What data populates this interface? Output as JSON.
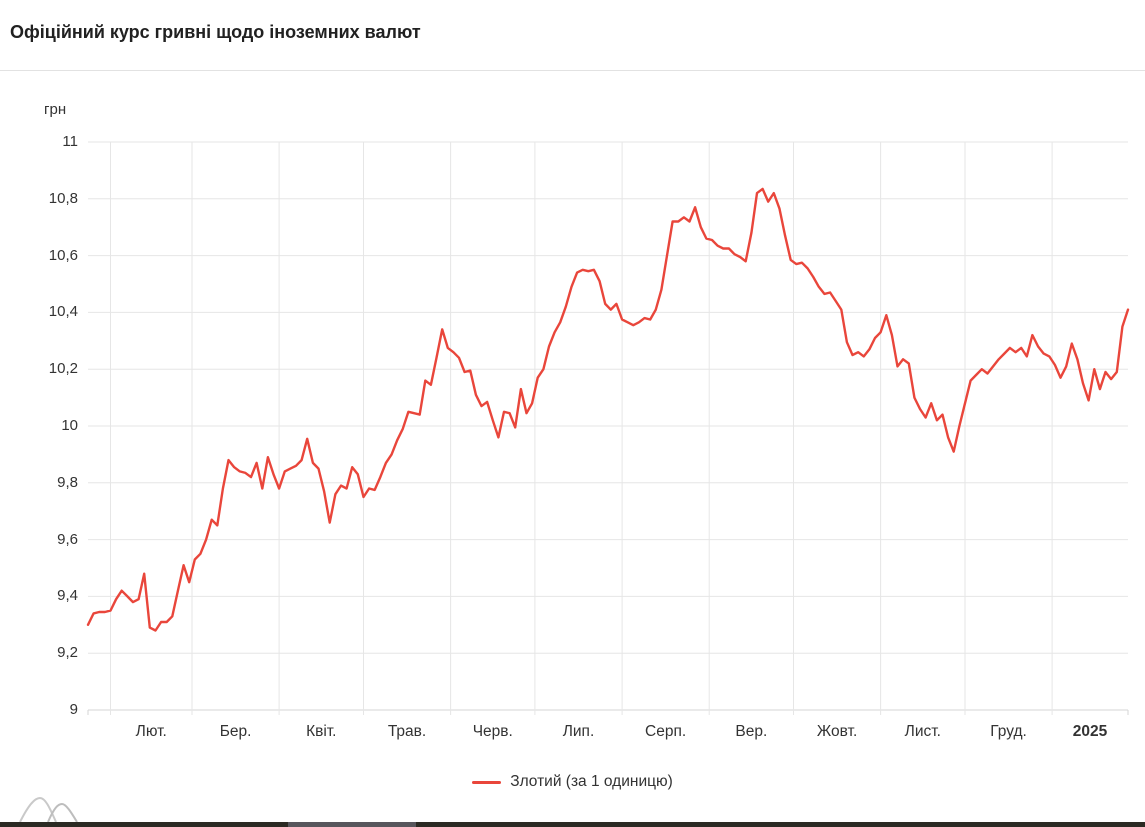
{
  "header": {
    "title": "Офіційний курс гривні щодо іноземних валют"
  },
  "chart_data": {
    "type": "line",
    "title": "Офіційний курс гривні щодо іноземних валют",
    "unit_label": "грн",
    "ylim": [
      9,
      11
    ],
    "ytick_step": 0.2,
    "ytick_labels": [
      "11",
      "10,8",
      "10,6",
      "10,4",
      "10,2",
      "10",
      "9,8",
      "9,6",
      "9,4",
      "9,2",
      "9"
    ],
    "x_month_labels": [
      "Лют.",
      "Бер.",
      "Квіт.",
      "Трав.",
      "Черв.",
      "Лип.",
      "Серп.",
      "Вер.",
      "Жовт.",
      "Лист.",
      "Груд.",
      "2025"
    ],
    "month_boundary_days": [
      8,
      37,
      68,
      98,
      129,
      159,
      190,
      221,
      251,
      282,
      312,
      343
    ],
    "total_days": 370,
    "sample_step_days": 2,
    "grid": true,
    "legend_position": "bottom-center",
    "series": [
      {
        "name": "Злотий (за 1 одиницю)",
        "color": "#e9463b",
        "values": [
          9.3,
          9.34,
          9.345,
          9.345,
          9.35,
          9.39,
          9.42,
          9.4,
          9.38,
          9.39,
          9.48,
          9.29,
          9.28,
          9.31,
          9.31,
          9.33,
          9.42,
          9.51,
          9.45,
          9.53,
          9.55,
          9.6,
          9.67,
          9.65,
          9.78,
          9.88,
          9.855,
          9.84,
          9.835,
          9.82,
          9.87,
          9.78,
          9.89,
          9.83,
          9.78,
          9.84,
          9.85,
          9.86,
          9.88,
          9.955,
          9.87,
          9.85,
          9.77,
          9.66,
          9.76,
          9.79,
          9.78,
          9.855,
          9.83,
          9.75,
          9.78,
          9.775,
          9.82,
          9.87,
          9.9,
          9.95,
          9.99,
          10.05,
          10.045,
          10.04,
          10.16,
          10.145,
          10.24,
          10.34,
          10.275,
          10.26,
          10.24,
          10.19,
          10.195,
          10.11,
          10.07,
          10.085,
          10.02,
          9.96,
          10.05,
          10.045,
          9.995,
          10.13,
          10.045,
          10.08,
          10.17,
          10.2,
          10.28,
          10.33,
          10.365,
          10.42,
          10.49,
          10.54,
          10.55,
          10.545,
          10.55,
          10.51,
          10.43,
          10.41,
          10.43,
          10.375,
          10.365,
          10.355,
          10.365,
          10.38,
          10.375,
          10.41,
          10.48,
          10.6,
          10.72,
          10.72,
          10.735,
          10.72,
          10.77,
          10.7,
          10.66,
          10.655,
          10.635,
          10.625,
          10.625,
          10.605,
          10.595,
          10.58,
          10.68,
          10.82,
          10.835,
          10.79,
          10.82,
          10.765,
          10.67,
          10.585,
          10.57,
          10.575,
          10.555,
          10.525,
          10.49,
          10.465,
          10.47,
          10.44,
          10.41,
          10.295,
          10.25,
          10.26,
          10.245,
          10.27,
          10.31,
          10.33,
          10.39,
          10.32,
          10.21,
          10.235,
          10.22,
          10.1,
          10.06,
          10.03,
          10.08,
          10.02,
          10.04,
          9.96,
          9.91,
          10.0,
          10.08,
          10.16,
          10.18,
          10.2,
          10.185,
          10.21,
          10.235,
          10.255,
          10.275,
          10.26,
          10.275,
          10.245,
          10.32,
          10.28,
          10.255,
          10.245,
          10.215,
          10.17,
          10.21,
          10.29,
          10.235,
          10.15,
          10.09,
          10.2,
          10.13,
          10.19,
          10.165,
          10.19,
          10.35,
          10.41
        ]
      }
    ]
  },
  "footer": {
    "bar_color": "#2b2a23",
    "bar_highlight_color": "#57565c"
  },
  "colors": {
    "grid": "#e6e6e6",
    "axis": "#d6d6d6",
    "text": "#333333",
    "title": "#212121"
  }
}
